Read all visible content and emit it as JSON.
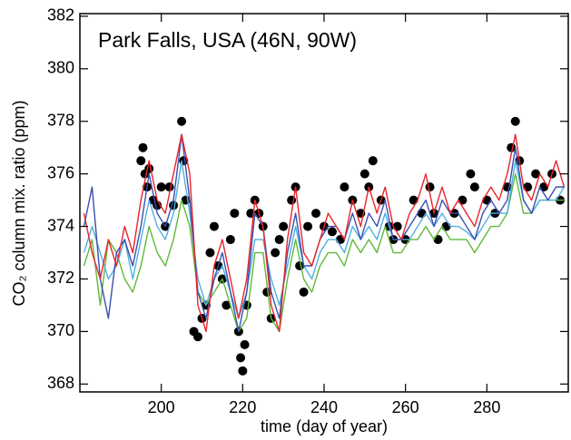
{
  "chart_data": {
    "type": "line",
    "title": "Park Falls, USA (46N, 90W)",
    "xlabel": "time (day of year)",
    "ylabel": "CO₂ column mix. ratio (ppm)",
    "xlim": [
      180,
      300
    ],
    "ylim": [
      367.7,
      382.1
    ],
    "xticks": [
      200,
      220,
      240,
      260,
      280
    ],
    "yticks": [
      368,
      370,
      372,
      374,
      376,
      378,
      380,
      382
    ],
    "x": [
      181,
      183,
      185,
      187,
      189,
      191,
      193,
      195,
      197,
      199,
      201,
      203,
      205,
      207,
      209,
      211,
      213,
      215,
      217,
      219,
      221,
      223,
      225,
      227,
      229,
      231,
      233,
      235,
      237,
      239,
      241,
      243,
      245,
      247,
      249,
      251,
      253,
      255,
      257,
      259,
      261,
      263,
      265,
      267,
      269,
      271,
      273,
      275,
      277,
      279,
      281,
      283,
      285,
      287,
      289,
      291,
      293,
      295,
      297,
      299
    ],
    "series": [
      {
        "type": "scatter",
        "color": "#000000",
        "x": [
          195,
          195.5,
          196,
          196.5,
          197,
          198,
          199,
          200,
          201,
          202,
          203,
          205,
          205.5,
          206,
          208,
          209,
          210,
          211,
          212,
          213,
          214,
          215,
          216,
          217,
          218,
          219,
          219.5,
          220,
          220.5,
          221,
          222,
          223,
          224,
          225,
          226,
          227,
          228,
          229,
          230,
          232,
          233,
          234,
          235,
          236,
          238,
          240,
          242,
          244,
          245,
          247,
          249,
          250,
          251,
          252,
          254,
          256,
          257,
          258,
          260,
          262,
          264,
          266,
          267,
          268,
          270,
          272,
          274,
          276,
          277,
          280,
          282,
          285,
          286,
          287,
          288,
          290,
          292,
          294,
          296,
          298
        ],
        "values": [
          376.5,
          377,
          376,
          375.5,
          376.2,
          375,
          374.8,
          375.5,
          374,
          375.5,
          374.8,
          378,
          376.5,
          375,
          370,
          369.8,
          370.5,
          371,
          373,
          374,
          372.5,
          372,
          371,
          373.5,
          374.5,
          370,
          369,
          368.5,
          369.5,
          371,
          374.5,
          375,
          374.5,
          374,
          371.5,
          370.5,
          373,
          373.5,
          374,
          375,
          375.5,
          372.5,
          371.5,
          374,
          374.5,
          374,
          373.8,
          373.5,
          375.5,
          375,
          374.5,
          376,
          375.5,
          376.5,
          375,
          374,
          373.5,
          374,
          373.5,
          375,
          374.5,
          375.5,
          374.5,
          373.5,
          374,
          374.5,
          375,
          376,
          375.5,
          375,
          374.5,
          375.5,
          377,
          378,
          376.5,
          375.5,
          376,
          375.5,
          376,
          375
        ]
      },
      {
        "type": "line",
        "color": "#5fb83a",
        "values": [
          372.5,
          373.5,
          371,
          373.5,
          373,
          372,
          371.5,
          372.5,
          374,
          373,
          372.5,
          373.5,
          375,
          374,
          371.5,
          371,
          371.5,
          372,
          371,
          370,
          370.5,
          373,
          373,
          370.5,
          370,
          372,
          373.5,
          372,
          371.5,
          372.5,
          373,
          373,
          372.5,
          373.5,
          373,
          373.5,
          373,
          374,
          373,
          373,
          373.5,
          373.5,
          374,
          373.5,
          374,
          373.5,
          373.5,
          373.5,
          373,
          373.5,
          374,
          374,
          374.5,
          376,
          374.5,
          374.5,
          375,
          375,
          375,
          375
        ]
      },
      {
        "type": "line",
        "color": "#4fb0e0",
        "values": [
          373,
          374,
          373,
          372,
          372.5,
          373.5,
          372,
          373.5,
          375,
          374,
          373.5,
          374.5,
          376.5,
          374.5,
          372,
          371,
          372,
          372.5,
          371.5,
          370.5,
          371.5,
          373.5,
          373.5,
          372,
          371,
          372.5,
          374,
          372.5,
          372,
          373,
          373.5,
          373.5,
          373,
          374,
          373.5,
          374,
          373.5,
          374.5,
          373.5,
          373.5,
          373.5,
          374,
          374.5,
          374,
          374.5,
          374,
          374,
          373.8,
          373.5,
          374,
          374.5,
          374.5,
          374.5,
          376.5,
          375,
          374.5,
          375,
          375,
          375,
          375.5
        ]
      },
      {
        "type": "line",
        "color": "#3a4fb0",
        "values": [
          374,
          375.5,
          372,
          370.5,
          373,
          373.5,
          372.5,
          374,
          376,
          374.5,
          374,
          375,
          377.5,
          375,
          371.5,
          370.5,
          372,
          373,
          371.5,
          370,
          371.5,
          374.5,
          374,
          371.5,
          370.5,
          373,
          374.5,
          372.5,
          372.5,
          373.5,
          374,
          374,
          373.5,
          374.5,
          373.5,
          374.5,
          374,
          375,
          373.5,
          373.5,
          374,
          374.5,
          375,
          374,
          375,
          374.5,
          374.5,
          374,
          373.5,
          374.5,
          375,
          374.5,
          375,
          377,
          375,
          374.5,
          375.5,
          375,
          375.5,
          375.5
        ]
      },
      {
        "type": "line",
        "color": "#e8252a",
        "values": [
          374.5,
          373,
          372,
          373.5,
          372.5,
          374,
          373,
          375,
          376.5,
          375,
          374.5,
          376,
          377.5,
          376,
          371,
          370,
          372.5,
          373.5,
          372,
          370.5,
          372,
          375,
          374,
          371,
          370,
          373.5,
          375.5,
          373,
          372.5,
          373.5,
          374.5,
          374,
          373.5,
          375,
          374,
          375.5,
          374.5,
          375.5,
          374,
          373.5,
          374.5,
          375,
          376,
          374.5,
          375.5,
          374.5,
          375,
          374.5,
          374,
          375,
          375.5,
          375,
          376,
          377.5,
          375.5,
          375,
          376,
          375.5,
          376.5,
          375.5
        ]
      }
    ]
  }
}
